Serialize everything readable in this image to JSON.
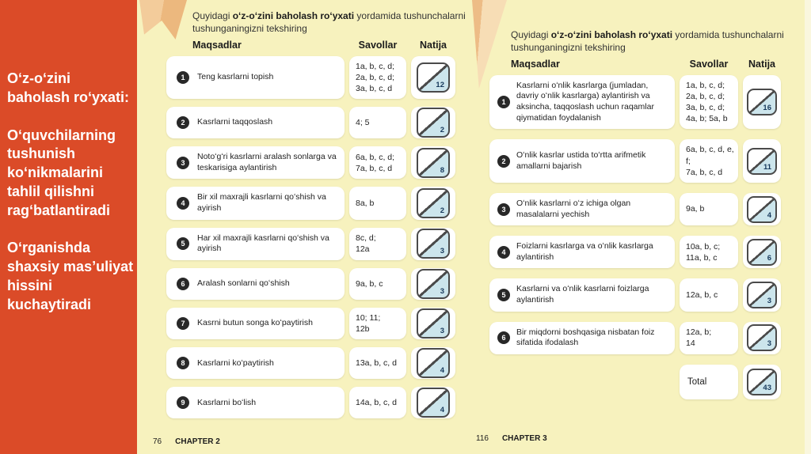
{
  "colors": {
    "sidebar_red": "#DB4B28",
    "page_background": "#F7F2BE",
    "score_box_blue": "#CCE5EC",
    "score_number_navy": "#17395C",
    "ribbon_orange": "#ECB87E"
  },
  "sidebar": {
    "title": "Oʻz-oʻzini\nbaholash roʻyxati:",
    "paragraph1": "Oʻquvchilarning\ntushunish\nkoʻnikmalarini\ntahlil qilishni\nragʻbatlantiradi",
    "paragraph2": "Oʻrganishda\nshaxsiy masʼuliyat\nhissini\nkuchaytiradi"
  },
  "page2": {
    "intro": {
      "prefix": "Quyidagi ",
      "bold": "oʻz-oʻzini baholash roʻyxati",
      "suffix": " yordamida tushunchalarni\ntushunganingizni tekshiring"
    },
    "columns": {
      "objectives": "Maqsadlar",
      "questions": "Savollar",
      "result": "Natija"
    },
    "rows": [
      {
        "num": "1",
        "objective": "Teng kasrlarni topish",
        "questions": "1a, b, c, d;\n2a, b, c, d;\n3a, b, c, d",
        "score": "12"
      },
      {
        "num": "2",
        "objective": "Kasrlarni taqqoslash",
        "questions": "4; 5",
        "score": "2"
      },
      {
        "num": "3",
        "objective": "Notoʻgʻri kasrlarni aralash sonlarga va teskarisiga aylantirish",
        "questions": "6a, b, c, d;\n7a, b, c, d",
        "score": "8"
      },
      {
        "num": "4",
        "objective": "Bir xil maxrajli kasrlarni qoʻshish va ayirish",
        "questions": "8a, b",
        "score": "2"
      },
      {
        "num": "5",
        "objective": "Har xil maxrajli kasrlarni qoʻshish va ayirish",
        "questions": "8c, d;\n12a",
        "score": "3"
      },
      {
        "num": "6",
        "objective": "Aralash sonlarni qoʻshish",
        "questions": "9a, b, c",
        "score": "3"
      },
      {
        "num": "7",
        "objective": "Kasrni butun songa koʻpaytirish",
        "questions": "10; 11;\n12b",
        "score": "3"
      },
      {
        "num": "8",
        "objective": "Kasrlarni koʻpaytirish",
        "questions": "13a, b, c, d",
        "score": "4"
      },
      {
        "num": "9",
        "objective": "Kasrlarni boʻlish",
        "questions": "14a, b, c, d",
        "score": "4"
      }
    ],
    "footer": {
      "page_number": "76",
      "chapter": "CHAPTER 2"
    }
  },
  "page3": {
    "intro": {
      "prefix": "Quyidagi ",
      "bold": "oʻz-oʻzini baholash roʻyxati",
      "suffix": " yordamida tushunchalarni\ntushunganingizni tekshiring"
    },
    "columns": {
      "objectives": "Maqsadlar",
      "questions": "Savollar",
      "result": "Natija"
    },
    "rows": [
      {
        "num": "1",
        "objective": "Kasrlarni oʻnlik kasrlarga (jumladan, davriy oʻnlik kasrlarga) aylantirish va aksincha, taqqoslash uchun raqamlar qiymatidan foydalanish",
        "questions": "1a, b, c, d; 2a, b, c, d; 3a, b, c, d; 4a, b; 5a, b",
        "score": "16"
      },
      {
        "num": "2",
        "objective": "Oʻnlik kasrlar ustida toʻrtta arifmetik amallarni bajarish",
        "questions": "6a, b, c, d, e, f;\n7a, b, c, d",
        "score": "11"
      },
      {
        "num": "3",
        "objective": "Oʻnlik kasrlarni oʻz ichiga olgan masalalarni yechish",
        "questions": "9a, b",
        "score": "4"
      },
      {
        "num": "4",
        "objective": "Foizlarni kasrlarga va oʻnlik kasrlarga aylantirish",
        "questions": "10a, b, c;\n11a, b, c",
        "score": "6"
      },
      {
        "num": "5",
        "objective": "Kasrlarni va oʻnlik kasrlarni foizlarga aylantirish",
        "questions": "12a, b, c",
        "score": "3"
      },
      {
        "num": "6",
        "objective": "Bir miqdorni boshqasiga nisbatan foiz sifatida ifodalash",
        "questions": "12a, b;\n14",
        "score": "3"
      }
    ],
    "total": {
      "label": "Total",
      "score": "43"
    },
    "footer": {
      "page_number": "116",
      "chapter": "CHAPTER 3"
    }
  }
}
